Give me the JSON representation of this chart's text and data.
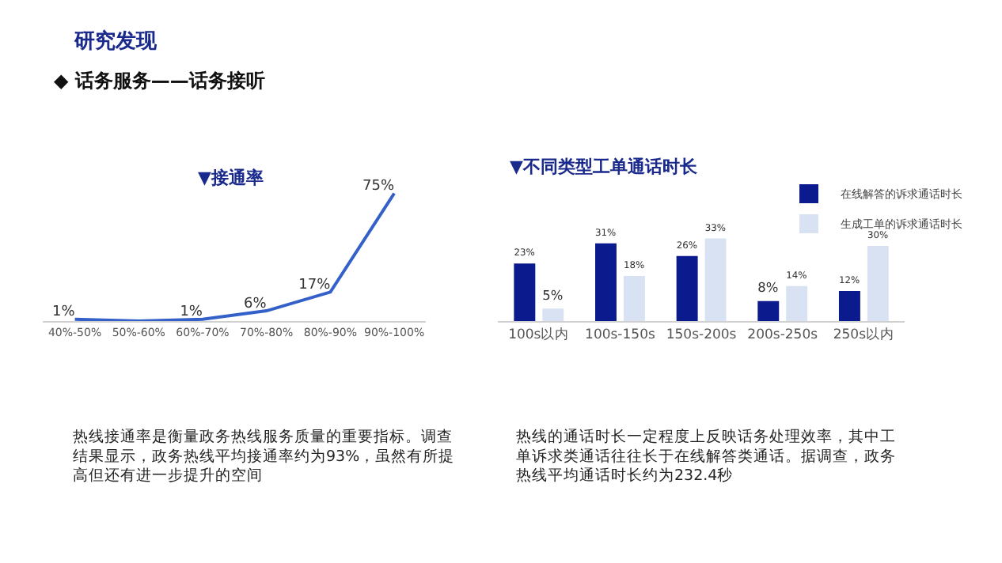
{
  "chart_data": [
    {
      "type": "line",
      "title": "▼接通率",
      "categories": [
        "40%-50%",
        "50%-60%",
        "60%-70%",
        "70%-80%",
        "80%-90%",
        "90%-100%"
      ],
      "series": [
        {
          "color": "#3461c9",
          "values": [
            1,
            0,
            1,
            6,
            17,
            75
          ],
          "value_labels": [
            "1%",
            null,
            "1%",
            "6%",
            "17%",
            "75%"
          ]
        }
      ],
      "marker": "none",
      "legend": false,
      "tick_labels": "x",
      "annotations": [
        "研究发现",
        "◆ 话务服务——话务接听",
        "热线接通率是衡量政务热线服务质量的重要指标。调查结果显示，政务热线平均接通率约为93%，虽然有所提高但还有进一步提升的空间"
      ]
    },
    {
      "type": "bar",
      "title": "▼不同类型工单通话时长",
      "categories": [
        "100s以内",
        "100s-150s",
        "150s-200s",
        "200s-250s",
        "250s以内"
      ],
      "series": [
        {
          "name": "在线解答的诉求通话时长",
          "color": "#0b1a8c",
          "values": [
            23,
            31,
            26,
            8,
            12
          ],
          "value_labels": [
            "23%",
            "31%",
            "26%",
            "8%",
            "12%"
          ]
        },
        {
          "name": "生成工单的诉求通话时长",
          "color": "#d9e2f3",
          "values": [
            5,
            18,
            33,
            14,
            30
          ],
          "value_labels": [
            "5%",
            "18%",
            "33%",
            "14%",
            "30%"
          ]
        }
      ],
      "legend": "top right",
      "tick_labels": "x",
      "annotations": [
        "热线的通话时长一定程度上反映话务处理效率，其中工单诉求类通话往往长于在线解答类通话。据调查，政务热线平均通话时长约为232.4秒"
      ]
    }
  ]
}
